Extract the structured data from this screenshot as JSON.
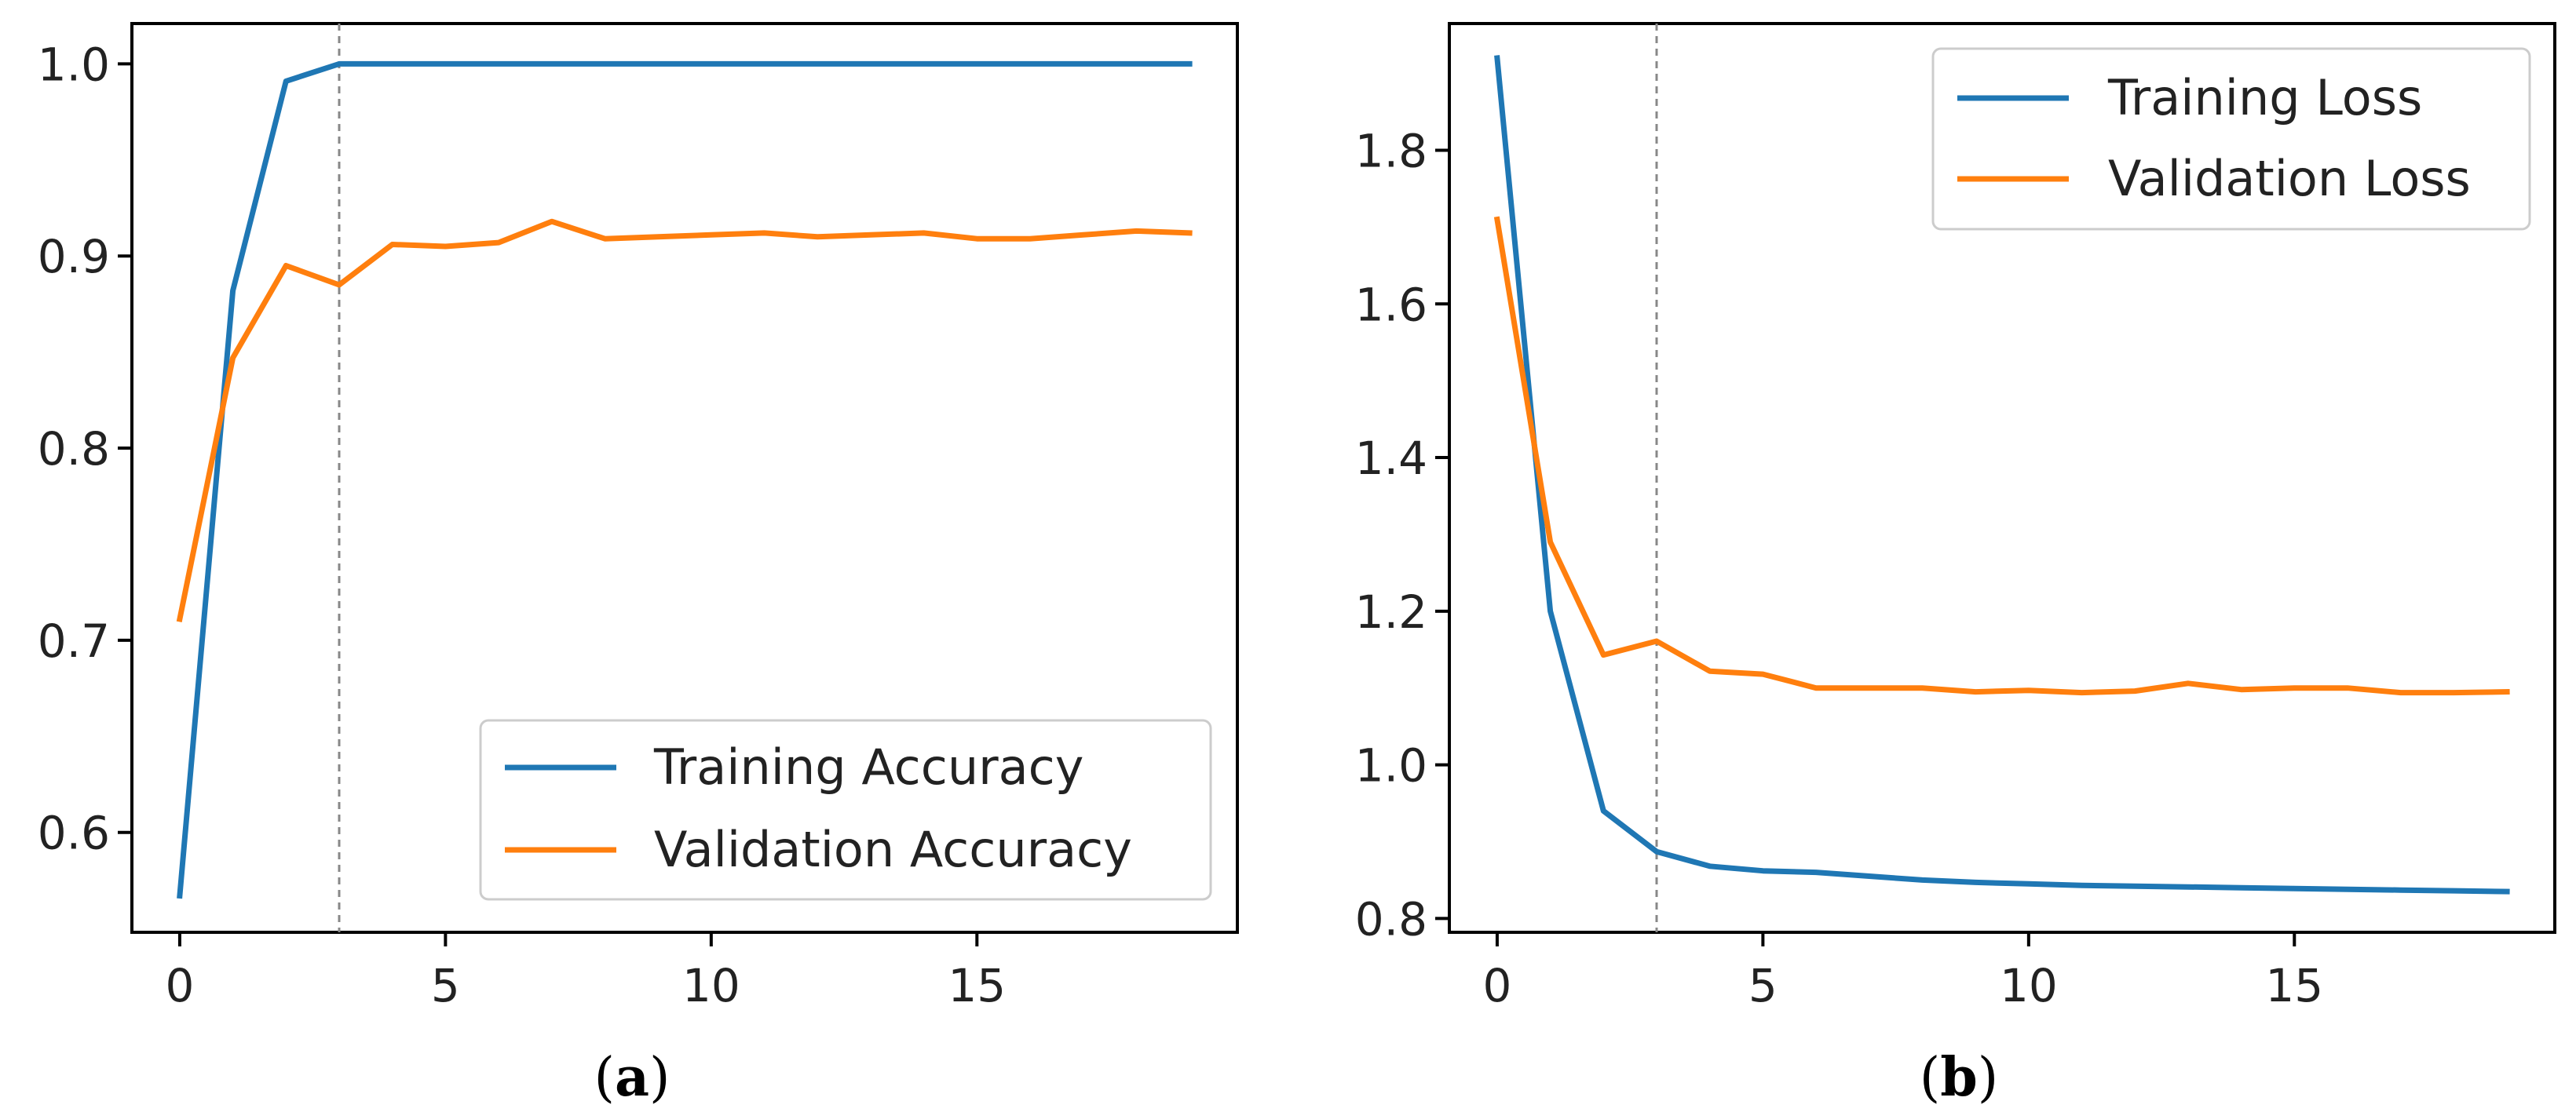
{
  "chart_data": [
    {
      "type": "line",
      "caption_letter": "a",
      "x": [
        0,
        1,
        2,
        3,
        4,
        5,
        6,
        7,
        8,
        9,
        10,
        11,
        12,
        13,
        14,
        15,
        16,
        17,
        18,
        19
      ],
      "xlim": [
        -0.9,
        19.9
      ],
      "ylim": [
        0.548,
        1.021
      ],
      "xticks": [
        "0",
        "5",
        "10",
        "15"
      ],
      "xtick_values": [
        0,
        5,
        10,
        15
      ],
      "yticks": [
        "0.6",
        "0.7",
        "0.8",
        "0.9",
        "1.0"
      ],
      "ytick_values": [
        0.6,
        0.7,
        0.8,
        0.9,
        1.0
      ],
      "vline_x": 3,
      "legend_position": "lower-right",
      "series": [
        {
          "name": "Training Accuracy",
          "color": "#1f77b4",
          "values": [
            0.567,
            0.882,
            0.991,
            1.0,
            1.0,
            1.0,
            1.0,
            1.0,
            1.0,
            1.0,
            1.0,
            1.0,
            1.0,
            1.0,
            1.0,
            1.0,
            1.0,
            1.0,
            1.0,
            1.0
          ]
        },
        {
          "name": "Validation Accuracy",
          "color": "#ff7f0e",
          "values": [
            0.711,
            0.847,
            0.895,
            0.885,
            0.906,
            0.905,
            0.907,
            0.918,
            0.909,
            0.91,
            0.911,
            0.912,
            0.91,
            0.911,
            0.912,
            0.909,
            0.909,
            0.911,
            0.913,
            0.912
          ]
        }
      ]
    },
    {
      "type": "line",
      "caption_letter": "b",
      "x": [
        0,
        1,
        2,
        3,
        4,
        5,
        6,
        7,
        8,
        9,
        10,
        11,
        12,
        13,
        14,
        15,
        16,
        17,
        18,
        19
      ],
      "xlim": [
        -0.9,
        19.9
      ],
      "ylim": [
        0.782,
        1.965
      ],
      "xticks": [
        "0",
        "5",
        "10",
        "15"
      ],
      "xtick_values": [
        0,
        5,
        10,
        15
      ],
      "yticks": [
        "0.8",
        "1.0",
        "1.2",
        "1.4",
        "1.6",
        "1.8"
      ],
      "ytick_values": [
        0.8,
        1.0,
        1.2,
        1.4,
        1.6,
        1.8
      ],
      "vline_x": 3,
      "legend_position": "upper-right",
      "series": [
        {
          "name": "Training Loss",
          "color": "#1f77b4",
          "values": [
            1.92,
            1.2,
            0.94,
            0.887,
            0.868,
            0.862,
            0.86,
            0.855,
            0.85,
            0.847,
            0.845,
            0.843,
            0.842,
            0.841,
            0.84,
            0.839,
            0.838,
            0.837,
            0.836,
            0.835
          ]
        },
        {
          "name": "Validation Loss",
          "color": "#ff7f0e",
          "values": [
            1.71,
            1.29,
            1.143,
            1.161,
            1.122,
            1.118,
            1.1,
            1.1,
            1.1,
            1.095,
            1.097,
            1.094,
            1.096,
            1.106,
            1.098,
            1.1,
            1.1,
            1.094,
            1.094,
            1.095
          ]
        }
      ]
    }
  ]
}
